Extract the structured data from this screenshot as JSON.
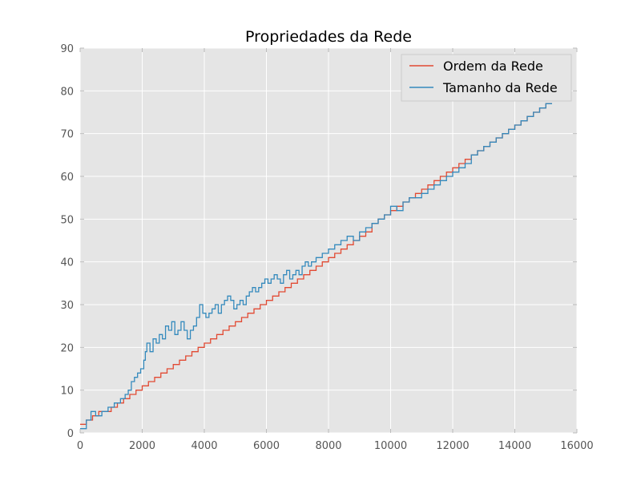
{
  "chart_data": {
    "type": "line",
    "title": "Propriedades da Rede",
    "xlabel": "",
    "ylabel": "",
    "xlim": [
      0,
      16000
    ],
    "ylim": [
      0,
      90
    ],
    "xticks": [
      0,
      2000,
      4000,
      6000,
      8000,
      10000,
      12000,
      14000,
      16000
    ],
    "yticks": [
      0,
      10,
      20,
      30,
      40,
      50,
      60,
      70,
      80,
      90
    ],
    "grid": true,
    "legend_position": "top-right",
    "colors": {
      "background": "#e5e5e5",
      "grid": "#ffffff",
      "axes_edge": "#bcbcbc"
    },
    "series": [
      {
        "name": "Ordem da Rede",
        "color": "#e24a33",
        "x": [
          0,
          200,
          400,
          600,
          800,
          1000,
          1200,
          1400,
          1600,
          1800,
          2000,
          2200,
          2400,
          2600,
          2800,
          3000,
          3200,
          3400,
          3600,
          3800,
          4000,
          4200,
          4400,
          4600,
          4800,
          5000,
          5200,
          5400,
          5600,
          5800,
          6000,
          6200,
          6400,
          6600,
          6800,
          7000,
          7200,
          7400,
          7600,
          7800,
          8000,
          8200,
          8400,
          8600,
          8800,
          9000,
          9200,
          9400,
          9600,
          9800,
          10000,
          10200,
          10400,
          10600,
          10800,
          11000,
          11200,
          11400,
          11600,
          11800,
          12000,
          12200,
          12400,
          12600,
          12800,
          13000,
          13200,
          13400,
          13600,
          13800,
          14000,
          14200,
          14400,
          14600,
          14800,
          15000,
          15200
        ],
        "y": [
          2,
          3,
          4,
          5,
          5,
          6,
          7,
          8,
          9,
          10,
          11,
          12,
          13,
          14,
          15,
          16,
          17,
          18,
          19,
          20,
          21,
          22,
          23,
          24,
          25,
          26,
          27,
          28,
          29,
          30,
          31,
          32,
          33,
          34,
          35,
          36,
          37,
          38,
          39,
          40,
          41,
          42,
          43,
          44,
          45,
          46,
          47,
          49,
          50,
          51,
          52,
          53,
          54,
          55,
          56,
          57,
          58,
          59,
          60,
          61,
          62,
          63,
          64,
          65,
          66,
          67,
          68,
          69,
          70,
          71,
          72,
          73,
          74,
          75,
          76,
          77,
          77
        ]
      },
      {
        "name": "Tamanho da Rede",
        "color": "#348abd",
        "x": [
          0,
          200,
          350,
          500,
          700,
          900,
          1100,
          1300,
          1450,
          1550,
          1650,
          1750,
          1850,
          1950,
          2050,
          2100,
          2150,
          2250,
          2350,
          2450,
          2550,
          2650,
          2750,
          2850,
          2950,
          3050,
          3150,
          3250,
          3350,
          3450,
          3550,
          3650,
          3750,
          3850,
          3950,
          4050,
          4150,
          4250,
          4350,
          4450,
          4550,
          4650,
          4750,
          4850,
          4950,
          5050,
          5150,
          5250,
          5350,
          5450,
          5550,
          5650,
          5750,
          5850,
          5950,
          6050,
          6150,
          6250,
          6350,
          6450,
          6550,
          6650,
          6750,
          6850,
          6950,
          7050,
          7150,
          7250,
          7350,
          7450,
          7600,
          7800,
          8000,
          8200,
          8400,
          8600,
          8800,
          9000,
          9200,
          9400,
          9600,
          9800,
          10000,
          10200,
          10400,
          10600,
          10800,
          11000,
          11200,
          11400,
          11600,
          11800,
          12000,
          12200,
          12400,
          12600,
          12800,
          13000,
          13200,
          13400,
          13600,
          13800,
          14000,
          14200,
          14400,
          14600,
          14800,
          15000,
          15200
        ],
        "y": [
          1,
          3,
          5,
          4,
          5,
          6,
          7,
          8,
          9,
          10,
          12,
          13,
          14,
          15,
          17,
          19,
          21,
          19,
          22,
          21,
          23,
          22,
          25,
          24,
          26,
          23,
          24,
          26,
          24,
          22,
          24,
          25,
          27,
          30,
          28,
          27,
          28,
          29,
          30,
          28,
          30,
          31,
          32,
          31,
          29,
          30,
          31,
          30,
          32,
          33,
          34,
          33,
          34,
          35,
          36,
          35,
          36,
          37,
          36,
          35,
          37,
          38,
          36,
          37,
          38,
          37,
          39,
          40,
          39,
          40,
          41,
          42,
          43,
          44,
          45,
          46,
          45,
          47,
          48,
          49,
          50,
          51,
          53,
          52,
          54,
          55,
          55,
          56,
          57,
          58,
          59,
          60,
          61,
          62,
          63,
          65,
          66,
          67,
          68,
          69,
          70,
          71,
          72,
          73,
          74,
          75,
          76,
          77,
          77
        ]
      }
    ]
  }
}
